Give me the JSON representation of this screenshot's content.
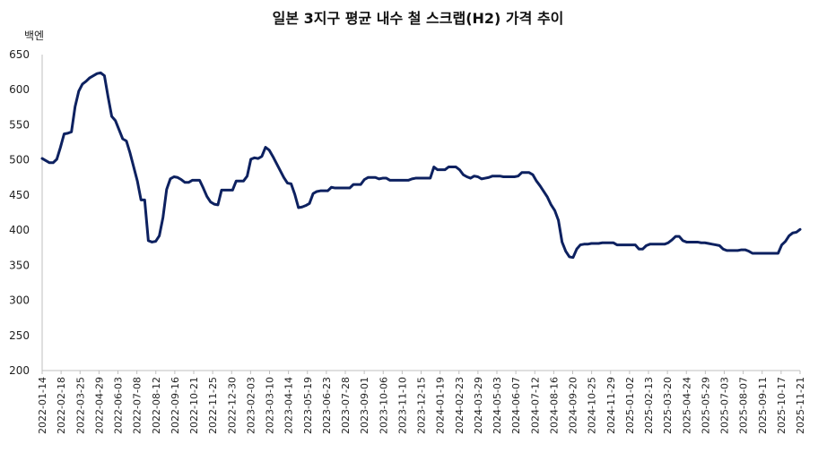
{
  "chart_data": {
    "type": "line",
    "title": "일본 3지구 평균 내수 철 스크랩(H2) 가격 추이",
    "ylabel": "백엔",
    "xlabel": "",
    "ylim": [
      200,
      650
    ],
    "yticks": [
      200,
      250,
      300,
      350,
      400,
      450,
      500,
      550,
      600,
      650
    ],
    "grid": false,
    "line_color": "#0d2160",
    "x_ticks": [
      "2022-01-14",
      "2022-02-18",
      "2022-03-25",
      "2022-04-29",
      "2022-06-03",
      "2022-07-08",
      "2022-08-12",
      "2022-09-16",
      "2022-10-21",
      "2022-11-25",
      "2022-12-30",
      "2023-02-03",
      "2023-03-10",
      "2023-04-14",
      "2023-05-19",
      "2023-06-23",
      "2023-07-28",
      "2023-09-01",
      "2023-10-06",
      "2023-11-10",
      "2023-12-15",
      "2024-01-19",
      "2024-02-23",
      "2024-03-29",
      "2024-05-03",
      "2024-06-07",
      "2024-07-12",
      "2024-08-16",
      "2024-09-20",
      "2024-10-25",
      "2024-11-29",
      "2025-01-02",
      "2025-02-13",
      "2025-03-20",
      "2025-04-24",
      "2025-05-29",
      "2025-07-03",
      "2025-08-07",
      "2025-09-11",
      "2025-10-17",
      "2025-11-21"
    ],
    "series": [
      {
        "values": [
          502,
          499,
          496,
          496,
          501,
          518,
          537,
          538,
          540,
          576,
          598,
          608,
          612,
          617,
          620,
          623,
          624,
          620,
          590,
          562,
          556,
          543,
          530,
          527,
          510,
          490,
          470,
          443,
          443,
          385,
          383,
          384,
          392,
          418,
          458,
          473,
          476,
          475,
          472,
          468,
          468,
          471,
          471,
          471,
          460,
          448,
          440,
          437,
          436,
          457,
          457,
          457,
          457,
          470,
          470,
          470,
          477,
          501,
          503,
          502,
          505,
          518,
          514,
          505,
          495,
          485,
          475,
          467,
          466,
          451,
          432,
          433,
          435,
          438,
          452,
          455,
          456,
          456,
          456,
          461,
          460,
          460,
          460,
          460,
          460,
          465,
          465,
          465,
          472,
          475,
          475,
          475,
          473,
          474,
          474,
          471,
          471,
          471,
          471,
          471,
          471,
          473,
          474,
          474,
          474,
          474,
          474,
          490,
          486,
          486,
          486,
          490,
          490,
          490,
          486,
          479,
          476,
          474,
          477,
          476,
          473,
          474,
          475,
          477,
          477,
          477,
          476,
          476,
          476,
          476,
          477,
          482,
          482,
          482,
          479,
          470,
          463,
          455,
          447,
          436,
          428,
          414,
          383,
          370,
          362,
          361,
          373,
          379,
          380,
          380,
          381,
          381,
          381,
          382,
          382,
          382,
          382,
          379,
          379,
          379,
          379,
          379,
          379,
          373,
          373,
          378,
          380,
          380,
          380,
          380,
          380,
          382,
          386,
          391,
          391,
          385,
          383,
          383,
          383,
          383,
          382,
          382,
          381,
          380,
          379,
          378,
          373,
          371,
          371,
          371,
          371,
          372,
          372,
          370,
          367,
          367,
          367,
          367,
          367,
          367,
          367,
          367,
          379,
          384,
          392,
          396,
          397,
          401
        ]
      }
    ]
  }
}
